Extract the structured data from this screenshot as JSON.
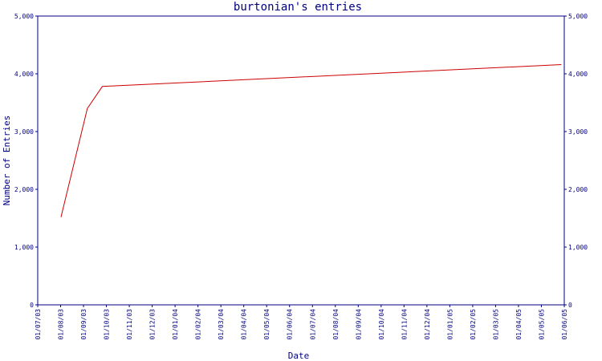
{
  "chart_data": {
    "type": "line",
    "title": "burtonian's entries",
    "xlabel": "Date",
    "ylabel": "Number of Entries",
    "ylim": [
      0,
      5000
    ],
    "y_ticks": [
      {
        "value": 0,
        "label": "0"
      },
      {
        "value": 1000,
        "label": "1,000"
      },
      {
        "value": 2000,
        "label": "2,000"
      },
      {
        "value": 3000,
        "label": "3,000"
      },
      {
        "value": 4000,
        "label": "4,000"
      },
      {
        "value": 5000,
        "label": "5,000"
      }
    ],
    "x_ticks": [
      "01/07/03",
      "01/08/03",
      "01/09/03",
      "01/10/03",
      "01/11/03",
      "01/12/03",
      "01/01/04",
      "01/02/04",
      "01/03/04",
      "01/04/04",
      "01/05/04",
      "01/06/04",
      "01/07/04",
      "01/08/04",
      "01/09/04",
      "01/10/04",
      "01/11/04",
      "01/12/04",
      "01/01/05",
      "01/02/05",
      "01/03/05",
      "01/04/05",
      "01/05/05",
      "01/06/05"
    ],
    "x_range": [
      "2003-07-01",
      "2005-06-01"
    ],
    "points": [
      {
        "x": "2003-08-01",
        "y": 1520
      },
      {
        "x": "2003-09-05",
        "y": 3400
      },
      {
        "x": "2003-09-25",
        "y": 3780
      },
      {
        "x": "2005-05-28",
        "y": 4160
      }
    ],
    "line_color": "#cc0000",
    "axis_color": "#000080",
    "grid": false,
    "secondary_y_axis": true
  }
}
